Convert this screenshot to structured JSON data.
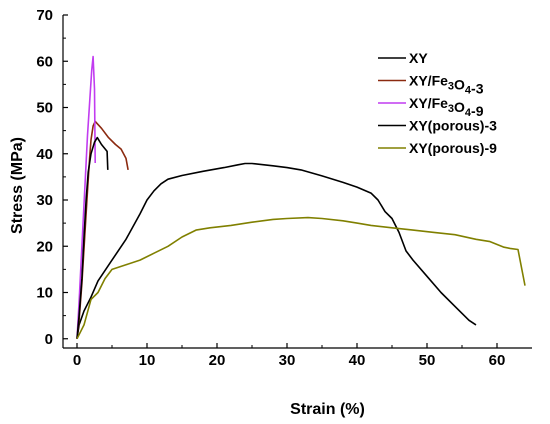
{
  "chart_data": {
    "type": "line",
    "title": "",
    "xlabel": "Strain (%)",
    "ylabel": "Stress (MPa)",
    "xlim": [
      -2,
      65
    ],
    "ylim": [
      -2,
      70
    ],
    "xticks": [
      0,
      10,
      20,
      30,
      40,
      50,
      60
    ],
    "yticks": [
      0,
      10,
      20,
      30,
      40,
      50,
      60,
      70
    ],
    "grid": false,
    "legend_position": "top-right",
    "legend": [
      {
        "text": "XY",
        "series_index": 0
      },
      {
        "parts": [
          {
            "t": "XY/Fe"
          },
          {
            "t": "3",
            "sub": true
          },
          {
            "t": "O"
          },
          {
            "t": "4",
            "sub": true
          },
          {
            "t": "-3"
          }
        ],
        "series_index": 1
      },
      {
        "parts": [
          {
            "t": "XY/Fe"
          },
          {
            "t": "3",
            "sub": true
          },
          {
            "t": "O"
          },
          {
            "t": "4",
            "sub": true
          },
          {
            "t": "-9"
          }
        ],
        "series_index": 2
      },
      {
        "text": "XY(porous)-3",
        "series_index": 3
      },
      {
        "text": "XY(porous)-9",
        "series_index": 4
      }
    ],
    "series": [
      {
        "name": "XY",
        "color": "#000000",
        "points": [
          [
            0,
            0
          ],
          [
            0.3,
            3
          ],
          [
            1,
            6
          ],
          [
            2,
            9
          ],
          [
            3,
            12.5
          ],
          [
            5,
            17
          ],
          [
            7,
            21.5
          ],
          [
            9,
            27
          ],
          [
            10,
            30
          ],
          [
            11,
            32
          ],
          [
            12,
            33.5
          ],
          [
            13,
            34.5
          ],
          [
            15,
            35.3
          ],
          [
            18,
            36.2
          ],
          [
            21,
            37
          ],
          [
            23,
            37.6
          ],
          [
            24,
            37.9
          ],
          [
            25,
            37.9
          ],
          [
            28,
            37.4
          ],
          [
            30,
            37
          ],
          [
            32,
            36.5
          ],
          [
            35,
            35.2
          ],
          [
            38,
            33.8
          ],
          [
            40,
            32.8
          ],
          [
            42,
            31.5
          ],
          [
            43,
            30
          ],
          [
            44,
            27.5
          ],
          [
            45,
            26
          ],
          [
            46,
            23
          ],
          [
            47,
            19
          ],
          [
            48,
            17
          ],
          [
            50,
            13.5
          ],
          [
            52,
            10
          ],
          [
            54,
            7
          ],
          [
            56,
            4
          ],
          [
            57,
            3
          ]
        ]
      },
      {
        "name": "XY/Fe3O4-3",
        "color": "#8b2a10",
        "points": [
          [
            0,
            0
          ],
          [
            0.3,
            4
          ],
          [
            0.7,
            12
          ],
          [
            1.1,
            22
          ],
          [
            1.5,
            32
          ],
          [
            1.8,
            39
          ],
          [
            2,
            43
          ],
          [
            2.3,
            46
          ],
          [
            2.6,
            47
          ],
          [
            3.5,
            45.5
          ],
          [
            4.5,
            43.5
          ],
          [
            5.5,
            42
          ],
          [
            6.3,
            41
          ],
          [
            7,
            39
          ],
          [
            7.3,
            36.5
          ]
        ]
      },
      {
        "name": "XY/Fe3O4-9",
        "color": "#c13cf0",
        "points": [
          [
            0,
            0
          ],
          [
            0.3,
            8
          ],
          [
            0.6,
            17
          ],
          [
            0.9,
            26
          ],
          [
            1.2,
            35
          ],
          [
            1.5,
            44
          ],
          [
            1.8,
            51
          ],
          [
            2.1,
            58
          ],
          [
            2.3,
            61
          ],
          [
            2.5,
            54
          ],
          [
            2.6,
            38
          ]
        ]
      },
      {
        "name": "XY(porous)-3",
        "color": "#000000",
        "points": [
          [
            0,
            0
          ],
          [
            0.3,
            5
          ],
          [
            0.7,
            13
          ],
          [
            1,
            22
          ],
          [
            1.3,
            30
          ],
          [
            1.6,
            36
          ],
          [
            2,
            40
          ],
          [
            2.5,
            42.5
          ],
          [
            2.9,
            43.5
          ],
          [
            3.5,
            42
          ],
          [
            4.3,
            40.5
          ],
          [
            4.4,
            36.5
          ]
        ]
      },
      {
        "name": "XY(porous)-9",
        "color": "#808000",
        "points": [
          [
            0,
            0
          ],
          [
            1,
            3
          ],
          [
            2,
            8.5
          ],
          [
            3,
            10
          ],
          [
            4,
            13
          ],
          [
            5,
            15
          ],
          [
            7,
            16
          ],
          [
            9,
            17
          ],
          [
            11,
            18.5
          ],
          [
            13,
            20
          ],
          [
            15,
            22
          ],
          [
            17,
            23.5
          ],
          [
            19,
            24
          ],
          [
            22,
            24.5
          ],
          [
            25,
            25.2
          ],
          [
            28,
            25.8
          ],
          [
            30,
            26
          ],
          [
            33,
            26.2
          ],
          [
            35,
            26
          ],
          [
            38,
            25.5
          ],
          [
            40,
            25
          ],
          [
            42,
            24.5
          ],
          [
            45,
            24
          ],
          [
            48,
            23.5
          ],
          [
            51,
            23
          ],
          [
            54,
            22.5
          ],
          [
            57,
            21.5
          ],
          [
            59,
            21
          ],
          [
            61,
            19.8
          ],
          [
            62,
            19.5
          ],
          [
            63,
            19.3
          ],
          [
            64,
            11.5
          ]
        ]
      }
    ]
  }
}
